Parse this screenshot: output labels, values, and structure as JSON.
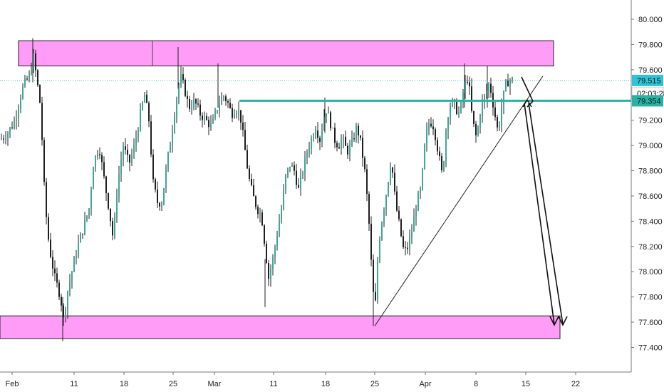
{
  "chart_data": {
    "type": "candlestick",
    "colors": {
      "zone_fill": "#ff9cf7",
      "zone_border": "#222222",
      "level_line": "#26b3a5",
      "candle_body": "#1f1f1f",
      "candle_up_body": "#3aa89a",
      "wick": "#1f1f1f",
      "dotted_line": "#2ec4d6",
      "trendline": "#222222",
      "grid": "#ffffff",
      "axis_bg": "#ffffff"
    },
    "y_axis": {
      "min": 77.2,
      "max": 80.1,
      "ticks": [
        "80.000",
        "79.800",
        "79.600",
        "79.400",
        "79.200",
        "79.000",
        "78.800",
        "78.600",
        "78.400",
        "78.200",
        "78.000",
        "77.800",
        "77.600",
        "77.400"
      ]
    },
    "x_axis": {
      "ticks": [
        "Feb",
        "11",
        "18",
        "25",
        "Mar",
        "11",
        "18",
        "25",
        "Apr",
        "8",
        "15",
        "22"
      ]
    },
    "price_tags": [
      {
        "label": "79.515",
        "bg": "#2ec4d6",
        "fg": "#111111"
      },
      {
        "label": "02:03:28",
        "bg": "#ffffff",
        "fg": "#111111"
      },
      {
        "label": "79.354",
        "bg": "#26b3a5",
        "fg": "#111111"
      }
    ],
    "zones": [
      {
        "name": "resistance-zone",
        "y_top": 79.83,
        "y_bottom": 79.63
      },
      {
        "name": "support-zone",
        "y_top": 77.65,
        "y_bottom": 77.47
      }
    ],
    "level": 79.354,
    "current_price": 79.515
  }
}
